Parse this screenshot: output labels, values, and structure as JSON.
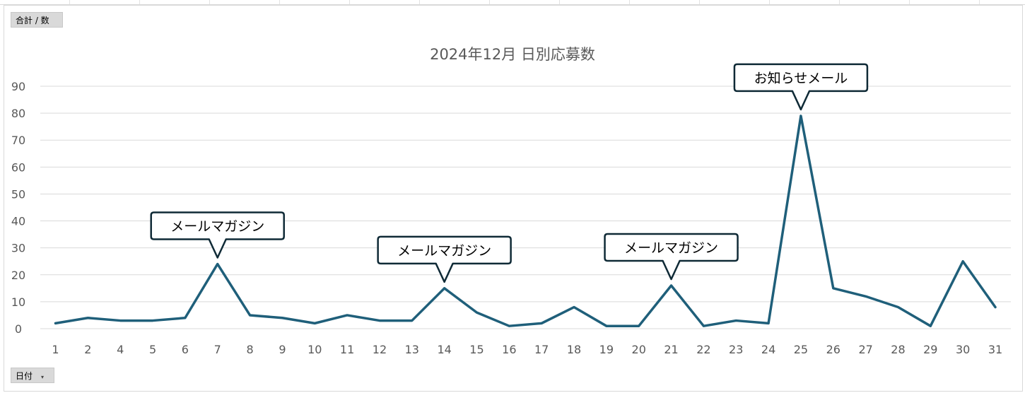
{
  "field_buttons": {
    "values_label": "合計 / 数",
    "axis_label": "日付",
    "axis_dropdown_glyph": "▾"
  },
  "colors": {
    "line": "#1f5f7a",
    "grid": "#d9d9d9",
    "text": "#595959",
    "callout_border": "#0f2a36"
  },
  "chart_data": {
    "type": "line",
    "title": "2024年12月 日別応募数",
    "xlabel": "",
    "ylabel": "",
    "ylim": [
      0,
      90
    ],
    "y_ticks": [
      0,
      10,
      20,
      30,
      40,
      50,
      60,
      70,
      80,
      90
    ],
    "grid": true,
    "legend": "none",
    "categories": [
      "1",
      "2",
      "4",
      "5",
      "6",
      "7",
      "8",
      "9",
      "10",
      "11",
      "12",
      "13",
      "14",
      "15",
      "16",
      "17",
      "18",
      "19",
      "20",
      "21",
      "22",
      "23",
      "24",
      "25",
      "26",
      "27",
      "28",
      "29",
      "30",
      "31"
    ],
    "series": [
      {
        "values": [
          2,
          4,
          3,
          3,
          4,
          24,
          5,
          4,
          2,
          5,
          3,
          3,
          15,
          6,
          1,
          2,
          8,
          1,
          1,
          16,
          1,
          3,
          2,
          79,
          15,
          12,
          8,
          1,
          25,
          8
        ]
      }
    ],
    "annotations": [
      {
        "category": "7",
        "text": "メールマガジン"
      },
      {
        "category": "14",
        "text": "メールマガジン"
      },
      {
        "category": "21",
        "text": "メールマガジン"
      },
      {
        "category": "25",
        "text": "お知らせメール"
      }
    ]
  }
}
